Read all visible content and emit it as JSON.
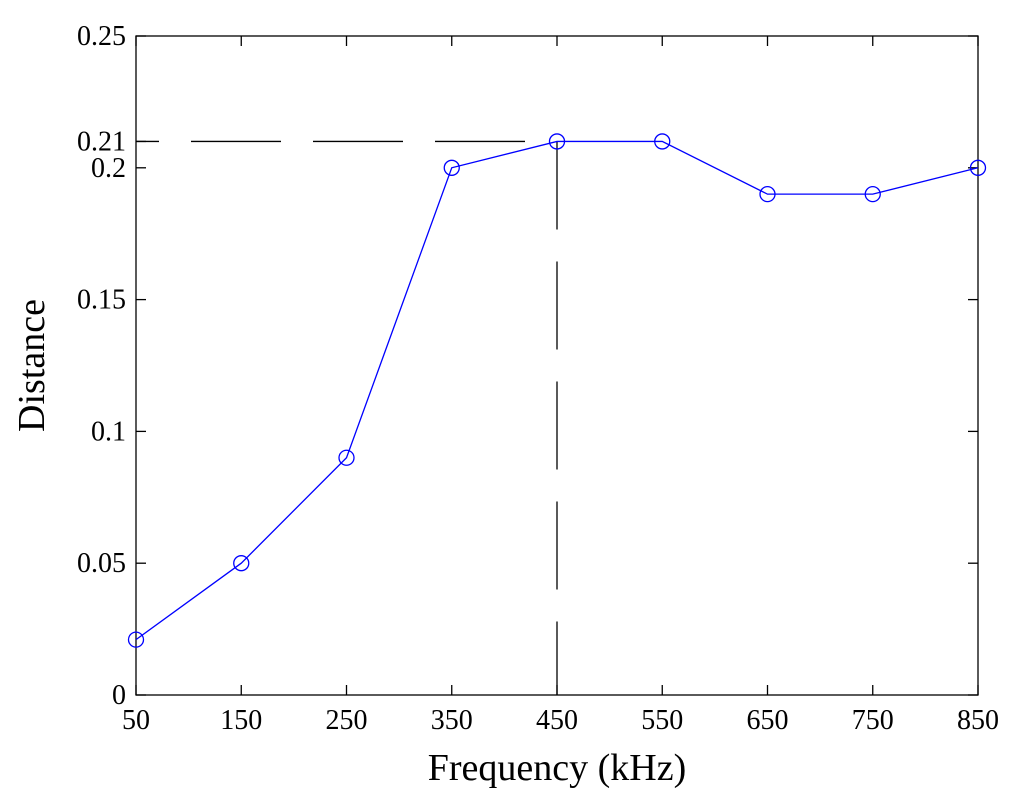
{
  "chart_data": {
    "type": "line",
    "title": "",
    "xlabel": "Frequency (kHz)",
    "ylabel": "Distance",
    "xlim": [
      50,
      850
    ],
    "ylim": [
      0,
      0.25
    ],
    "x_ticks": [
      "50",
      "150",
      "250",
      "350",
      "450",
      "550",
      "650",
      "750",
      "850"
    ],
    "x_tick_values": [
      50,
      150,
      250,
      350,
      450,
      550,
      650,
      750,
      850
    ],
    "y_ticks": [
      "0",
      "0.05",
      "0.1",
      "0.15",
      "0.2",
      "0.25"
    ],
    "y_tick_values": [
      0,
      0.05,
      0.1,
      0.15,
      0.2,
      0.25
    ],
    "grid": false,
    "series": [
      {
        "x": [
          50,
          150,
          250,
          350,
          450,
          550,
          650,
          750,
          850
        ],
        "y": [
          0.021,
          0.05,
          0.09,
          0.2,
          0.21,
          0.21,
          0.19,
          0.19,
          0.2
        ],
        "color": "#0000ff",
        "marker": "circle"
      }
    ],
    "annotations": [
      {
        "type": "hline-dashed",
        "y": 0.21,
        "x_from": 50,
        "x_to": 450,
        "label": "0.21",
        "color": "#000000"
      },
      {
        "type": "vline-dashed",
        "x": 450,
        "y_from": 0,
        "y_to": 0.21,
        "color": "#000000"
      }
    ]
  }
}
